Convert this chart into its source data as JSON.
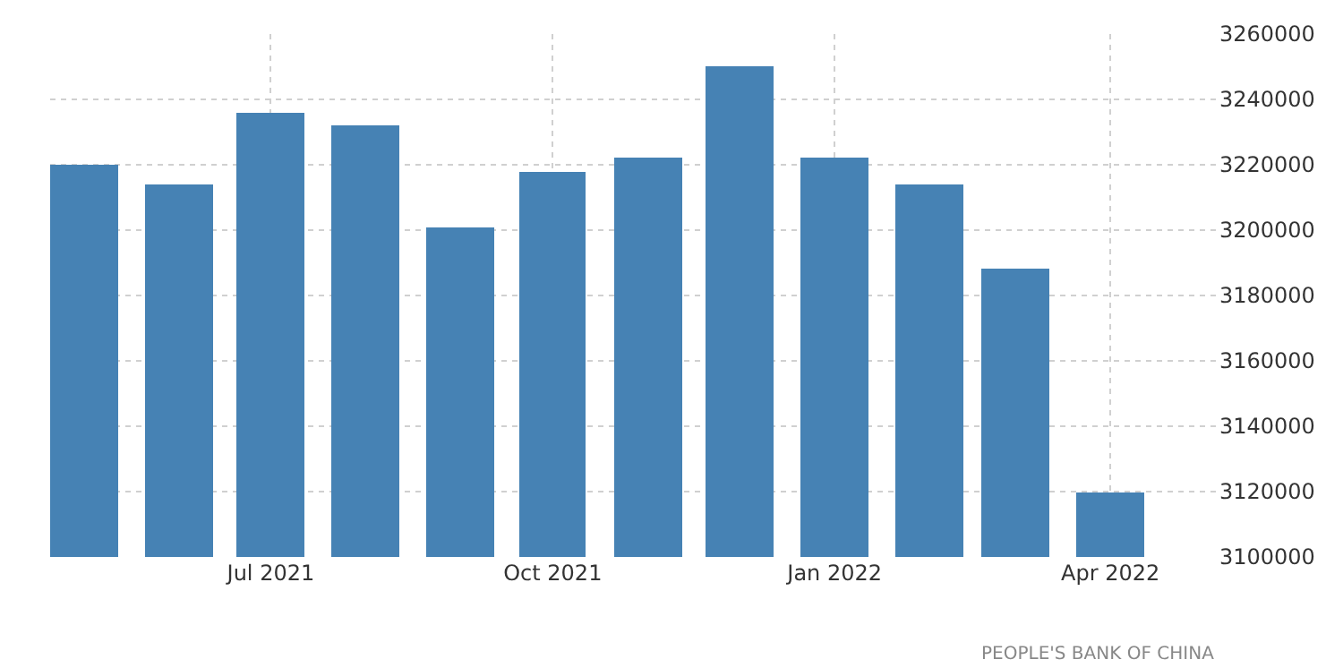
{
  "chart_data": {
    "type": "bar",
    "x": [
      "2021-05",
      "2021-06",
      "2021-07",
      "2021-08",
      "2021-09",
      "2021-10",
      "2021-11",
      "2021-12",
      "2022-01",
      "2022-02",
      "2022-03",
      "2022-04"
    ],
    "values": [
      3220000,
      3214000,
      3236000,
      3232000,
      3201000,
      3218000,
      3222000,
      3250000,
      3222000,
      3214000,
      3188000,
      3120000
    ],
    "color": "#4682b4",
    "xlim": [
      "2021-04-20",
      "2022-05-06"
    ],
    "xticks": [
      {
        "value": "2021-07",
        "label": "Jul 2021"
      },
      {
        "value": "2021-10",
        "label": "Oct 2021"
      },
      {
        "value": "2022-01",
        "label": "Jan 2022"
      },
      {
        "value": "2022-04",
        "label": "Apr 2022"
      }
    ],
    "ylim": [
      3100000,
      3260000
    ],
    "yticks": [
      3100000,
      3120000,
      3140000,
      3160000,
      3180000,
      3200000,
      3220000,
      3240000,
      3260000
    ],
    "grid": true,
    "annotations": [
      "PEOPLE'S BANK OF CHINA"
    ]
  }
}
